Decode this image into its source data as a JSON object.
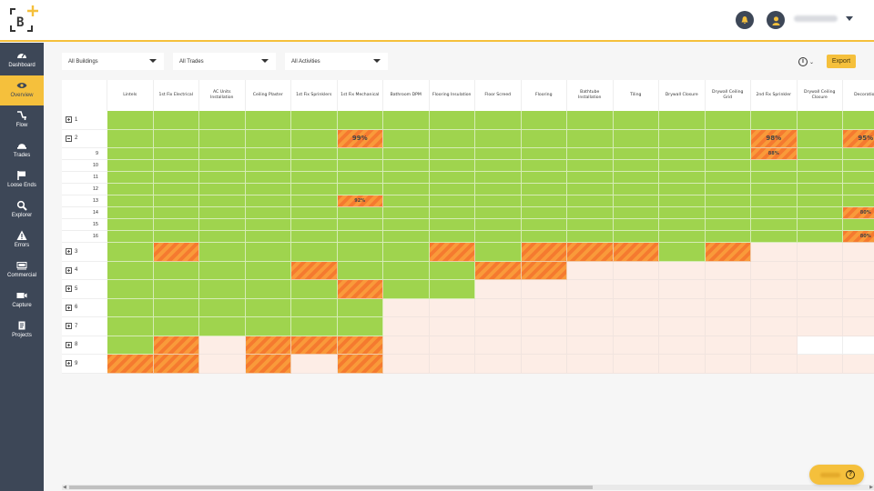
{
  "header": {
    "logo_text": "B",
    "username": "username",
    "icons": [
      "bell-icon",
      "user-icon",
      "caret-down-icon"
    ]
  },
  "sidebar": {
    "items": [
      {
        "label": "Dashboard",
        "icon": "gauge-icon",
        "active": false
      },
      {
        "label": "Overview",
        "icon": "eye-icon",
        "active": true
      },
      {
        "label": "Flow",
        "icon": "flow-icon",
        "active": false
      },
      {
        "label": "Trades",
        "icon": "hard-hat-icon",
        "active": false
      },
      {
        "label": "Loose Ends",
        "icon": "flag-icon",
        "active": false
      },
      {
        "label": "Explorer",
        "icon": "search-icon",
        "active": false
      },
      {
        "label": "Errors",
        "icon": "warning-icon",
        "active": false
      },
      {
        "label": "Commercial",
        "icon": "money-icon",
        "active": false
      },
      {
        "label": "Capture",
        "icon": "video-camera-icon",
        "active": false
      },
      {
        "label": "Projects",
        "icon": "clipboard-icon",
        "active": false
      }
    ]
  },
  "filters": {
    "buildings": "All Buildings",
    "trades": "All Trades",
    "activities": "All Activities"
  },
  "toolbar": {
    "info_icon": "i",
    "chevron": "⌄",
    "export_label": "Export"
  },
  "grid": {
    "columns": [
      "Lintels",
      "1st Fix Electrical",
      "AC Units Installation",
      "Ceiling Plaster",
      "1st Fix Sprinklers",
      "1st Fix Mechanical",
      "Bathroom DPM",
      "Flooring Insulation",
      "Floor Screed",
      "Flooring",
      "Bathtube Installation",
      "Tiling",
      "Drywall Closure",
      "Drywall Ceiling Grid",
      "2nd Fix Sprinkler",
      "Drywall Ceiling Closure",
      "Decoration"
    ],
    "legend": {
      "G": "complete",
      "S": "in progress",
      "P": "not started",
      "W": "not applicable"
    },
    "colors": {
      "complete": "#9fd44e",
      "in_progress_a": "#f57a2f",
      "in_progress_b": "#f99a3a",
      "not_started": "#fdede6",
      "accent": "#f5c03c",
      "sidebar": "#3d4757"
    },
    "rows": [
      {
        "label": "1",
        "level": "building",
        "expanded": false,
        "cells": [
          "G",
          "G",
          "G",
          "G",
          "G",
          "G",
          "G",
          "G",
          "G",
          "G",
          "G",
          "G",
          "G",
          "G",
          "G",
          "G",
          "G"
        ],
        "values": [
          "",
          "",
          "",
          "",
          "",
          "",
          "",
          "",
          "",
          "",
          "",
          "",
          "",
          "",
          "",
          "",
          ""
        ]
      },
      {
        "label": "2",
        "level": "building",
        "expanded": true,
        "cells": [
          "G",
          "G",
          "G",
          "G",
          "G",
          "S",
          "G",
          "G",
          "G",
          "G",
          "G",
          "G",
          "G",
          "G",
          "S",
          "G",
          "S"
        ],
        "values": [
          "",
          "",
          "",
          "",
          "",
          "99%",
          "",
          "",
          "",
          "",
          "",
          "",
          "",
          "",
          "98%",
          "",
          "95%"
        ]
      },
      {
        "label": "9",
        "level": "floor",
        "cells": [
          "G",
          "G",
          "G",
          "G",
          "G",
          "G",
          "G",
          "G",
          "G",
          "G",
          "G",
          "G",
          "G",
          "G",
          "S",
          "G",
          "G"
        ],
        "values": [
          "",
          "",
          "",
          "",
          "",
          "",
          "",
          "",
          "",
          "",
          "",
          "",
          "",
          "",
          "88%",
          "",
          ""
        ]
      },
      {
        "label": "10",
        "level": "floor",
        "cells": [
          "G",
          "G",
          "G",
          "G",
          "G",
          "G",
          "G",
          "G",
          "G",
          "G",
          "G",
          "G",
          "G",
          "G",
          "G",
          "G",
          "G"
        ],
        "values": [
          "",
          "",
          "",
          "",
          "",
          "",
          "",
          "",
          "",
          "",
          "",
          "",
          "",
          "",
          "",
          "",
          ""
        ]
      },
      {
        "label": "11",
        "level": "floor",
        "cells": [
          "G",
          "G",
          "G",
          "G",
          "G",
          "G",
          "G",
          "G",
          "G",
          "G",
          "G",
          "G",
          "G",
          "G",
          "G",
          "G",
          "G"
        ],
        "values": [
          "",
          "",
          "",
          "",
          "",
          "",
          "",
          "",
          "",
          "",
          "",
          "",
          "",
          "",
          "",
          "",
          ""
        ]
      },
      {
        "label": "12",
        "level": "floor",
        "cells": [
          "G",
          "G",
          "G",
          "G",
          "G",
          "G",
          "G",
          "G",
          "G",
          "G",
          "G",
          "G",
          "G",
          "G",
          "G",
          "G",
          "G"
        ],
        "values": [
          "",
          "",
          "",
          "",
          "",
          "",
          "",
          "",
          "",
          "",
          "",
          "",
          "",
          "",
          "",
          "",
          ""
        ]
      },
      {
        "label": "13",
        "level": "floor",
        "cells": [
          "G",
          "G",
          "G",
          "G",
          "G",
          "S",
          "G",
          "G",
          "G",
          "G",
          "G",
          "G",
          "G",
          "G",
          "G",
          "G",
          "G"
        ],
        "values": [
          "",
          "",
          "",
          "",
          "",
          "92%",
          "",
          "",
          "",
          "",
          "",
          "",
          "",
          "",
          "",
          "",
          ""
        ]
      },
      {
        "label": "14",
        "level": "floor",
        "cells": [
          "G",
          "G",
          "G",
          "G",
          "G",
          "G",
          "G",
          "G",
          "G",
          "G",
          "G",
          "G",
          "G",
          "G",
          "G",
          "G",
          "S"
        ],
        "values": [
          "",
          "",
          "",
          "",
          "",
          "",
          "",
          "",
          "",
          "",
          "",
          "",
          "",
          "",
          "",
          "",
          "80%"
        ]
      },
      {
        "label": "15",
        "level": "floor",
        "cells": [
          "G",
          "G",
          "G",
          "G",
          "G",
          "G",
          "G",
          "G",
          "G",
          "G",
          "G",
          "G",
          "G",
          "G",
          "G",
          "G",
          "G"
        ],
        "values": [
          "",
          "",
          "",
          "",
          "",
          "",
          "",
          "",
          "",
          "",
          "",
          "",
          "",
          "",
          "",
          "",
          ""
        ]
      },
      {
        "label": "16",
        "level": "floor",
        "cells": [
          "G",
          "G",
          "G",
          "G",
          "G",
          "G",
          "G",
          "G",
          "G",
          "G",
          "G",
          "G",
          "G",
          "G",
          "G",
          "G",
          "S"
        ],
        "values": [
          "",
          "",
          "",
          "",
          "",
          "",
          "",
          "",
          "",
          "",
          "",
          "",
          "",
          "",
          "",
          "",
          "80%"
        ]
      },
      {
        "label": "3",
        "level": "building",
        "expanded": false,
        "cells": [
          "G",
          "S",
          "G",
          "G",
          "G",
          "G",
          "G",
          "S",
          "G",
          "S",
          "S",
          "S",
          "G",
          "S",
          "P",
          "P",
          "P"
        ],
        "values": [
          "",
          "",
          "",
          "",
          "",
          "",
          "",
          "",
          "",
          "",
          "",
          "",
          "",
          "",
          "",
          "",
          ""
        ]
      },
      {
        "label": "4",
        "level": "building",
        "expanded": false,
        "cells": [
          "G",
          "G",
          "G",
          "G",
          "S",
          "G",
          "G",
          "G",
          "S",
          "S",
          "P",
          "P",
          "P",
          "P",
          "P",
          "P",
          "P"
        ],
        "values": [
          "",
          "",
          "",
          "",
          "",
          "",
          "",
          "",
          "",
          "",
          "",
          "",
          "",
          "",
          "",
          "",
          ""
        ]
      },
      {
        "label": "5",
        "level": "building",
        "expanded": false,
        "cells": [
          "G",
          "G",
          "G",
          "G",
          "G",
          "S",
          "G",
          "G",
          "P",
          "P",
          "P",
          "P",
          "P",
          "P",
          "P",
          "P",
          "P"
        ],
        "values": [
          "",
          "",
          "",
          "",
          "",
          "",
          "",
          "",
          "",
          "",
          "",
          "",
          "",
          "",
          "",
          "",
          ""
        ]
      },
      {
        "label": "6",
        "level": "building",
        "expanded": false,
        "cells": [
          "G",
          "G",
          "G",
          "G",
          "G",
          "G",
          "P",
          "P",
          "P",
          "P",
          "P",
          "P",
          "P",
          "P",
          "P",
          "P",
          "P"
        ],
        "values": [
          "",
          "",
          "",
          "",
          "",
          "",
          "",
          "",
          "",
          "",
          "",
          "",
          "",
          "",
          "",
          "",
          ""
        ]
      },
      {
        "label": "7",
        "level": "building",
        "expanded": false,
        "cells": [
          "G",
          "G",
          "G",
          "G",
          "G",
          "G",
          "P",
          "P",
          "P",
          "P",
          "P",
          "P",
          "P",
          "P",
          "P",
          "P",
          "P"
        ],
        "values": [
          "",
          "",
          "",
          "",
          "",
          "",
          "",
          "",
          "",
          "",
          "",
          "",
          "",
          "",
          "",
          "",
          ""
        ]
      },
      {
        "label": "8",
        "level": "building",
        "expanded": false,
        "cells": [
          "G",
          "S",
          "P",
          "S",
          "S",
          "S",
          "P",
          "P",
          "P",
          "P",
          "P",
          "P",
          "P",
          "P",
          "P",
          "W",
          "W"
        ],
        "values": [
          "",
          "",
          "",
          "",
          "",
          "",
          "",
          "",
          "",
          "",
          "",
          "",
          "",
          "",
          "",
          "",
          ""
        ]
      },
      {
        "label": "9",
        "level": "building",
        "expanded": false,
        "cells": [
          "S",
          "S",
          "P",
          "S",
          "P",
          "S",
          "P",
          "P",
          "P",
          "P",
          "P",
          "P",
          "P",
          "P",
          "P",
          "P",
          "P"
        ],
        "values": [
          "",
          "",
          "",
          "",
          "",
          "",
          "",
          "",
          "",
          "",
          "",
          "",
          "",
          "",
          "",
          "",
          ""
        ]
      }
    ]
  },
  "help": {
    "label": "Help",
    "icon": "question-icon"
  }
}
